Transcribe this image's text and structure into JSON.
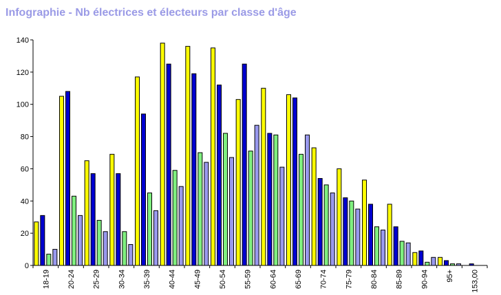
{
  "title": "Infographie - Nb électrices et électeurs par classe d'âge",
  "chart_data": {
    "type": "bar",
    "title": "Infographie - Nb électrices et électeurs par classe d'âge",
    "xlabel": "",
    "ylabel": "",
    "ylim": [
      0,
      140
    ],
    "yticks": [
      0,
      20,
      40,
      60,
      80,
      100,
      120,
      140
    ],
    "grid": false,
    "legend": "none",
    "categories": [
      "18-19",
      "20-24",
      "25-29",
      "30-34",
      "35-39",
      "40-44",
      "45-49",
      "50-54",
      "55-59",
      "60-64",
      "65-69",
      "70-74",
      "75-79",
      "80-84",
      "85-89",
      "90-94",
      "95+",
      "153,00"
    ],
    "series": [
      {
        "color": "#ffff00",
        "values": [
          27,
          105,
          65,
          69,
          117,
          138,
          136,
          135,
          103,
          110,
          106,
          73,
          60,
          53,
          38,
          8,
          5,
          0
        ]
      },
      {
        "color": "#0000d0",
        "values": [
          31,
          108,
          57,
          57,
          94,
          125,
          119,
          112,
          125,
          82,
          104,
          54,
          42,
          38,
          24,
          9,
          3,
          1
        ]
      },
      {
        "color": "#80f080",
        "values": [
          7,
          43,
          28,
          21,
          45,
          59,
          70,
          82,
          71,
          81,
          69,
          50,
          40,
          24,
          15,
          2,
          1,
          0
        ]
      },
      {
        "color": "#9999ee",
        "values": [
          10,
          31,
          21,
          13,
          34,
          49,
          64,
          67,
          87,
          61,
          81,
          45,
          35,
          22,
          14,
          5,
          1,
          0
        ]
      }
    ]
  }
}
